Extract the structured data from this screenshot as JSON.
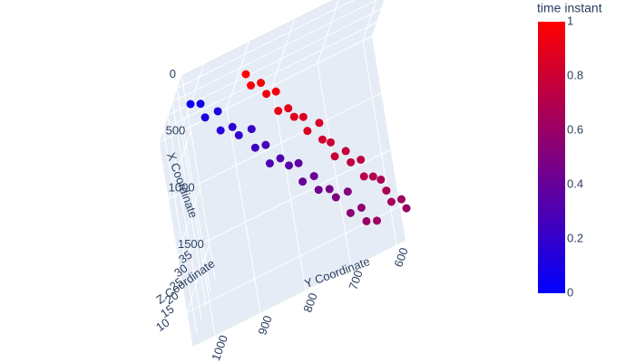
{
  "chart_data": {
    "type": "scatter3d",
    "x_title": "X Coordinate",
    "y_title": "Y Coordinate",
    "z_title": "Z Coordinate",
    "colorbar_title": "time instant",
    "colorscale": [
      "#0000ff",
      "#ff0000"
    ],
    "clim": [
      0,
      1
    ],
    "cticks": [
      0,
      0.2,
      0.4,
      0.6,
      0.8,
      1
    ],
    "xlim": [
      0,
      1800
    ],
    "xticks": [
      0,
      500,
      1000,
      1500
    ],
    "ylim": [
      580,
      1050
    ],
    "yticks": [
      600,
      700,
      800,
      900,
      1000
    ],
    "zlim": [
      10,
      35
    ],
    "zticks": [
      10,
      15,
      20,
      25,
      30,
      35
    ],
    "grid": true,
    "x": [
      0,
      75,
      150,
      225,
      300,
      375,
      450,
      525,
      600,
      675,
      750,
      825,
      900,
      975,
      1050,
      1125,
      1200,
      1275,
      1350,
      1425,
      1500,
      1575,
      1650,
      1725,
      0,
      75,
      150,
      225,
      300,
      375,
      450,
      525,
      600,
      675,
      750,
      825,
      900,
      975,
      1050,
      1125,
      1200,
      1275,
      1350,
      1425,
      1500,
      1575,
      1650,
      1725
    ],
    "y": [
      1000,
      985,
      972,
      955,
      942,
      925,
      912,
      895,
      880,
      866,
      850,
      838,
      820,
      808,
      792,
      778,
      765,
      748,
      735,
      720,
      705,
      692,
      678,
      662,
      880,
      868,
      855,
      842,
      830,
      818,
      805,
      793,
      780,
      768,
      755,
      743,
      730,
      718,
      705,
      693,
      680,
      668,
      655,
      643,
      630,
      618,
      605,
      595
    ],
    "z": [
      20,
      22,
      19,
      23,
      18,
      21,
      20,
      24,
      19,
      22,
      17,
      21,
      20,
      23,
      18,
      22,
      19,
      21,
      20,
      24,
      18,
      22,
      19,
      21,
      21,
      19,
      22,
      20,
      23,
      18,
      21,
      20,
      22,
      19,
      24,
      20,
      21,
      18,
      22,
      20,
      23,
      19,
      21,
      22,
      20,
      18,
      21,
      20
    ],
    "color_values": [
      0.05,
      0.08,
      0.1,
      0.12,
      0.15,
      0.17,
      0.2,
      0.22,
      0.25,
      0.27,
      0.3,
      0.32,
      0.35,
      0.37,
      0.4,
      0.42,
      0.44,
      0.47,
      0.5,
      0.52,
      0.55,
      0.57,
      0.6,
      0.62,
      1,
      0.98,
      0.97,
      0.95,
      0.94,
      0.92,
      0.9,
      0.89,
      0.87,
      0.86,
      0.84,
      0.82,
      0.8,
      0.79,
      0.77,
      0.75,
      0.74,
      0.72,
      0.7,
      0.68,
      0.67,
      0.65,
      0.63,
      0.6
    ]
  }
}
